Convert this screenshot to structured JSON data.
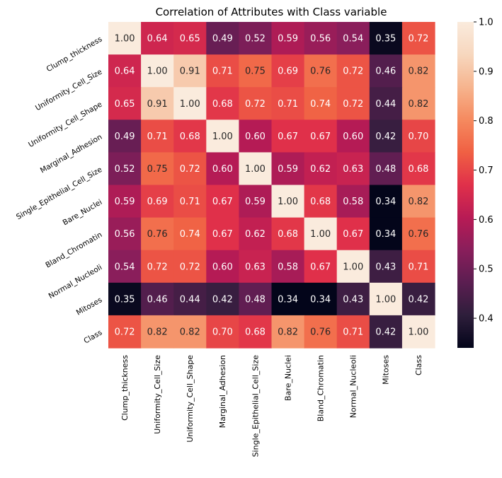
{
  "chart_data": {
    "type": "heatmap",
    "title": "Correlation of Attributes with Class variable",
    "xlabel": "",
    "ylabel": "",
    "row_labels": [
      "Clump_thickness",
      "Uniformity_Cell_Size",
      "Uniformity_Cell_Shape",
      "Marginal_Adhesion",
      "Single_Epithelial_Cell_Size",
      "Bare_Nuclei",
      "Bland_Chromatin",
      "Normal_Nucleoli",
      "Mitoses",
      "Class"
    ],
    "col_labels": [
      "Clump_thickness",
      "Uniformity_Cell_Size",
      "Uniformity_Cell_Shape",
      "Marginal_Adhesion",
      "Single_Epithelial_Cell_Size",
      "Bare_Nuclei",
      "Bland_Chromatin",
      "Normal_Nucleoli",
      "Mitoses",
      "Class"
    ],
    "values": [
      [
        1.0,
        0.64,
        0.65,
        0.49,
        0.52,
        0.59,
        0.56,
        0.54,
        0.35,
        0.72
      ],
      [
        0.64,
        1.0,
        0.91,
        0.71,
        0.75,
        0.69,
        0.76,
        0.72,
        0.46,
        0.82
      ],
      [
        0.65,
        0.91,
        1.0,
        0.68,
        0.72,
        0.71,
        0.74,
        0.72,
        0.44,
        0.82
      ],
      [
        0.49,
        0.71,
        0.68,
        1.0,
        0.6,
        0.67,
        0.67,
        0.6,
        0.42,
        0.7
      ],
      [
        0.52,
        0.75,
        0.72,
        0.6,
        1.0,
        0.59,
        0.62,
        0.63,
        0.48,
        0.68
      ],
      [
        0.59,
        0.69,
        0.71,
        0.67,
        0.59,
        1.0,
        0.68,
        0.58,
        0.34,
        0.82
      ],
      [
        0.56,
        0.76,
        0.74,
        0.67,
        0.62,
        0.68,
        1.0,
        0.67,
        0.34,
        0.76
      ],
      [
        0.54,
        0.72,
        0.72,
        0.6,
        0.63,
        0.58,
        0.67,
        1.0,
        0.43,
        0.71
      ],
      [
        0.35,
        0.46,
        0.44,
        0.42,
        0.48,
        0.34,
        0.34,
        0.43,
        1.0,
        0.42
      ],
      [
        0.72,
        0.82,
        0.82,
        0.7,
        0.68,
        0.82,
        0.76,
        0.71,
        0.42,
        1.0
      ]
    ],
    "value_format": "2 decimals",
    "colorbar": {
      "range": [
        0.34,
        1.0
      ],
      "ticks": [
        "0.4",
        "0.5",
        "0.6",
        "0.7",
        "0.8",
        "0.9",
        "1.0"
      ],
      "colormap": "rocket",
      "stops": [
        "#03051a",
        "#2e1e3b",
        "#5b1e51",
        "#891e5b",
        "#b81b55",
        "#e0304a",
        "#f06043",
        "#f58a5f",
        "#f6b48e",
        "#f7d7be",
        "#faebdd"
      ]
    },
    "grid": false,
    "legend": "colorbar-right"
  }
}
